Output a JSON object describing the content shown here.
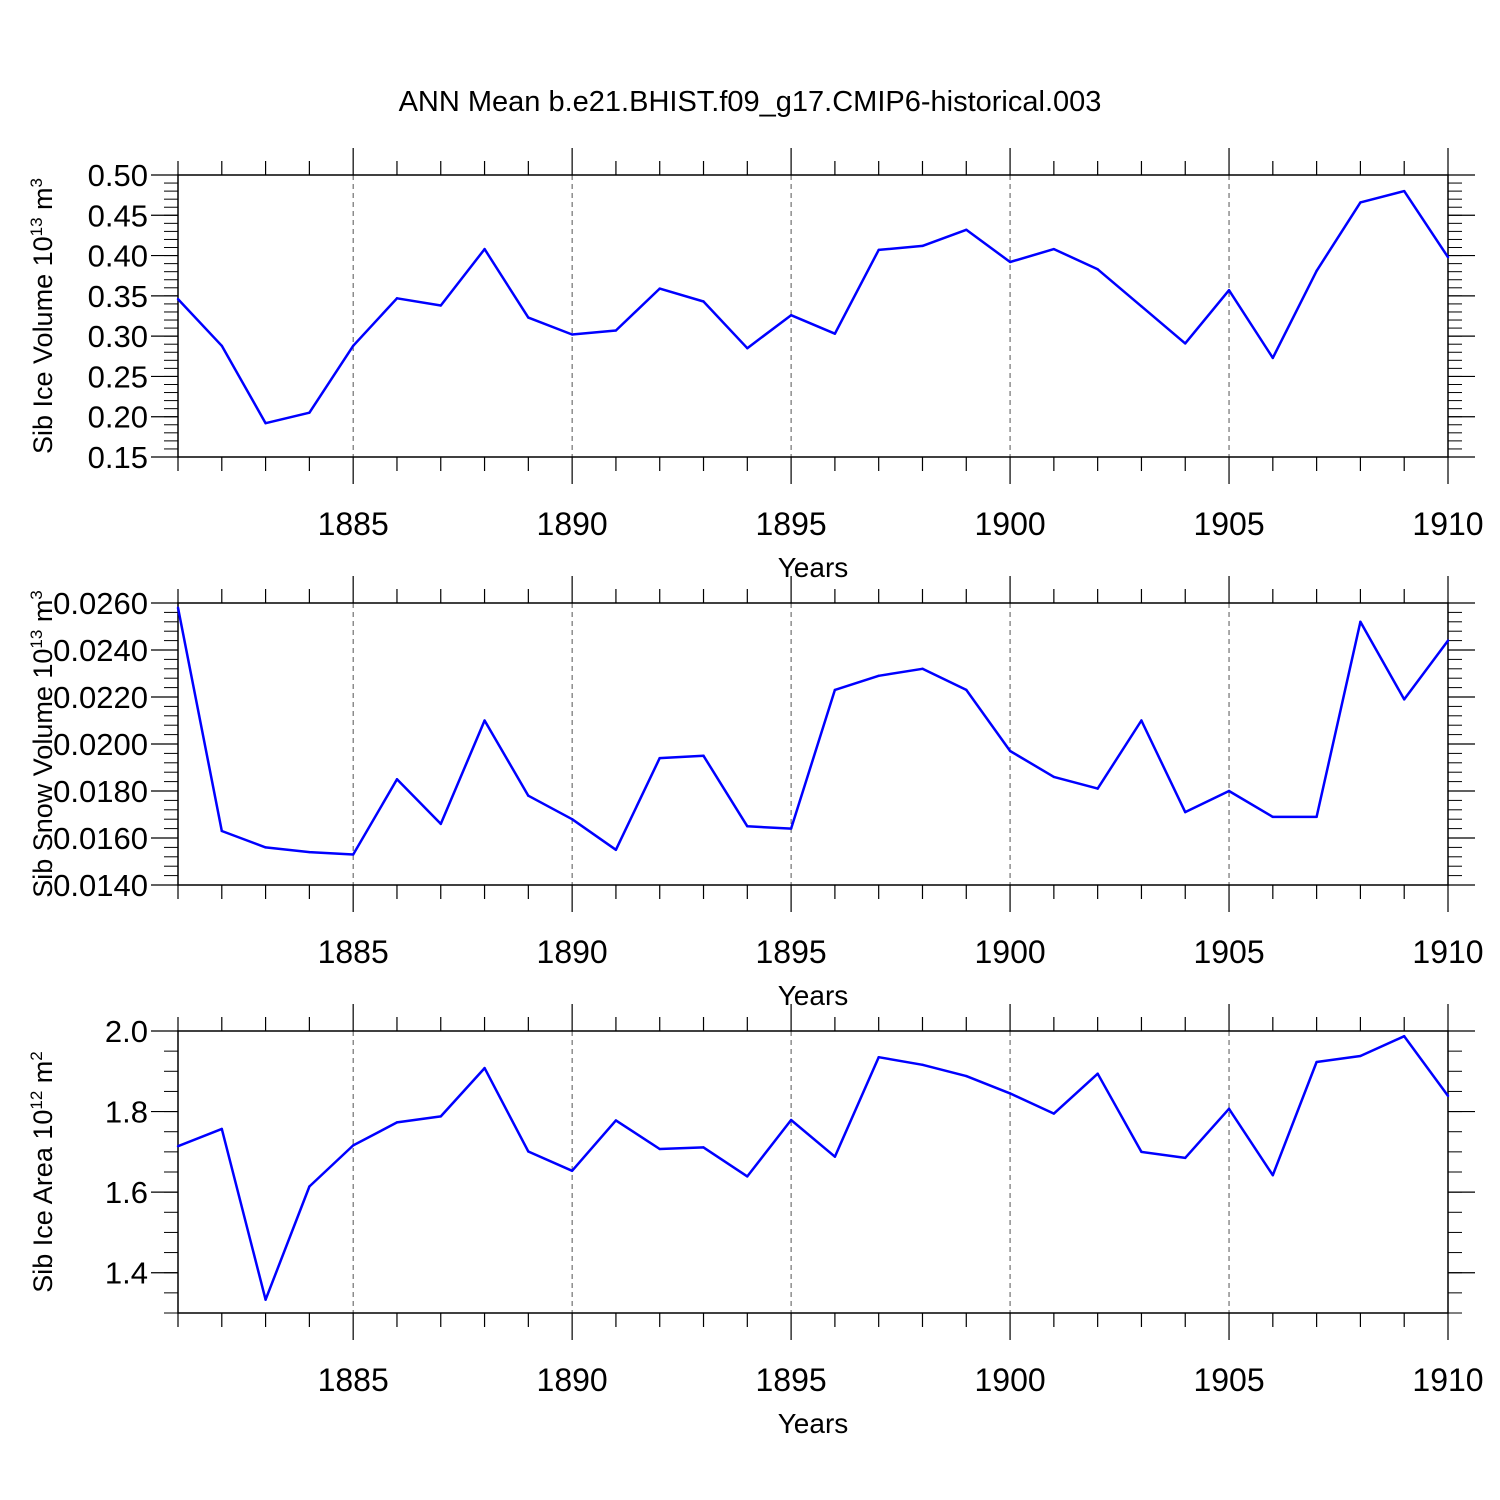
{
  "title": "ANN Mean b.e21.BHIST.f09_g17.CMIP6-historical.003",
  "chart_data": [
    {
      "type": "line",
      "ylabel_main": "Sib Ice Volume 10",
      "ylabel_exp": "13",
      "ylabel_unit": " m",
      "ylabel_unit_exp": "3",
      "xlabel": "Years",
      "xlim": [
        1881,
        1910
      ],
      "ylim": [
        0.15,
        0.5
      ],
      "yticks": [
        0.15,
        0.2,
        0.25,
        0.3,
        0.35,
        0.4,
        0.45,
        0.5
      ],
      "ytick_labels": [
        "0.15",
        "0.20",
        "0.25",
        "0.30",
        "0.35",
        "0.40",
        "0.45",
        "0.50"
      ],
      "yminor": 0.01,
      "xticks": [
        1885,
        1890,
        1895,
        1900,
        1905,
        1910
      ],
      "xtick_labels": [
        "1885",
        "1890",
        "1895",
        "1900",
        "1905",
        "1910"
      ],
      "line_color": "#0000ff",
      "x": [
        1881,
        1882,
        1883,
        1884,
        1885,
        1886,
        1887,
        1888,
        1889,
        1890,
        1891,
        1892,
        1893,
        1894,
        1895,
        1896,
        1897,
        1898,
        1899,
        1900,
        1901,
        1902,
        1903,
        1904,
        1905,
        1906,
        1907,
        1908,
        1909,
        1910
      ],
      "values": [
        0.346,
        0.288,
        0.192,
        0.205,
        0.288,
        0.347,
        0.338,
        0.408,
        0.323,
        0.302,
        0.307,
        0.359,
        0.343,
        0.285,
        0.326,
        0.303,
        0.407,
        0.412,
        0.432,
        0.392,
        0.408,
        0.383,
        0.337,
        0.291,
        0.357,
        0.273,
        0.381,
        0.466,
        0.48,
        0.398
      ]
    },
    {
      "type": "line",
      "ylabel_main": "Sib Snow Volume 10",
      "ylabel_exp": "13",
      "ylabel_unit": " m",
      "ylabel_unit_exp": "3",
      "xlabel": "Years",
      "xlim": [
        1881,
        1910
      ],
      "ylim": [
        0.014,
        0.026
      ],
      "yticks": [
        0.014,
        0.016,
        0.018,
        0.02,
        0.022,
        0.024,
        0.026
      ],
      "ytick_labels": [
        "0.0140",
        "0.0160",
        "0.0180",
        "0.0200",
        "0.0220",
        "0.0240",
        "0.0260"
      ],
      "yminor": 0.0004,
      "xticks": [
        1885,
        1890,
        1895,
        1900,
        1905,
        1910
      ],
      "xtick_labels": [
        "1885",
        "1890",
        "1895",
        "1900",
        "1905",
        "1910"
      ],
      "line_color": "#0000ff",
      "x": [
        1881,
        1882,
        1883,
        1884,
        1885,
        1886,
        1887,
        1888,
        1889,
        1890,
        1891,
        1892,
        1893,
        1894,
        1895,
        1896,
        1897,
        1898,
        1899,
        1900,
        1901,
        1902,
        1903,
        1904,
        1905,
        1906,
        1907,
        1908,
        1909,
        1910
      ],
      "values": [
        0.0258,
        0.0163,
        0.0156,
        0.0154,
        0.0153,
        0.0185,
        0.0166,
        0.021,
        0.0178,
        0.0168,
        0.0155,
        0.0194,
        0.0195,
        0.0165,
        0.0164,
        0.0223,
        0.0229,
        0.0232,
        0.0223,
        0.0197,
        0.0186,
        0.0181,
        0.021,
        0.0171,
        0.018,
        0.0169,
        0.0169,
        0.0252,
        0.0219,
        0.0244
      ]
    },
    {
      "type": "line",
      "ylabel_main": "Sib Ice Area 10",
      "ylabel_exp": "12",
      "ylabel_unit": " m",
      "ylabel_unit_exp": "2",
      "xlabel": "Years",
      "xlim": [
        1881,
        1910
      ],
      "ylim": [
        1.3,
        2.0
      ],
      "yticks": [
        1.4,
        1.6,
        1.8,
        2.0
      ],
      "ytick_labels": [
        "1.4",
        "1.6",
        "1.8",
        "2.0"
      ],
      "yminor": 0.05,
      "xticks": [
        1885,
        1890,
        1895,
        1900,
        1905,
        1910
      ],
      "xtick_labels": [
        "1885",
        "1890",
        "1895",
        "1900",
        "1905",
        "1910"
      ],
      "line_color": "#0000ff",
      "x": [
        1881,
        1882,
        1883,
        1884,
        1885,
        1886,
        1887,
        1888,
        1889,
        1890,
        1891,
        1892,
        1893,
        1894,
        1895,
        1896,
        1897,
        1898,
        1899,
        1900,
        1901,
        1902,
        1903,
        1904,
        1905,
        1906,
        1907,
        1908,
        1909,
        1910
      ],
      "values": [
        1.714,
        1.757,
        1.333,
        1.614,
        1.716,
        1.773,
        1.788,
        1.908,
        1.701,
        1.653,
        1.778,
        1.707,
        1.711,
        1.639,
        1.779,
        1.688,
        1.935,
        1.916,
        1.888,
        1.845,
        1.795,
        1.894,
        1.7,
        1.685,
        1.807,
        1.642,
        1.923,
        1.938,
        1.987,
        1.839
      ]
    }
  ]
}
